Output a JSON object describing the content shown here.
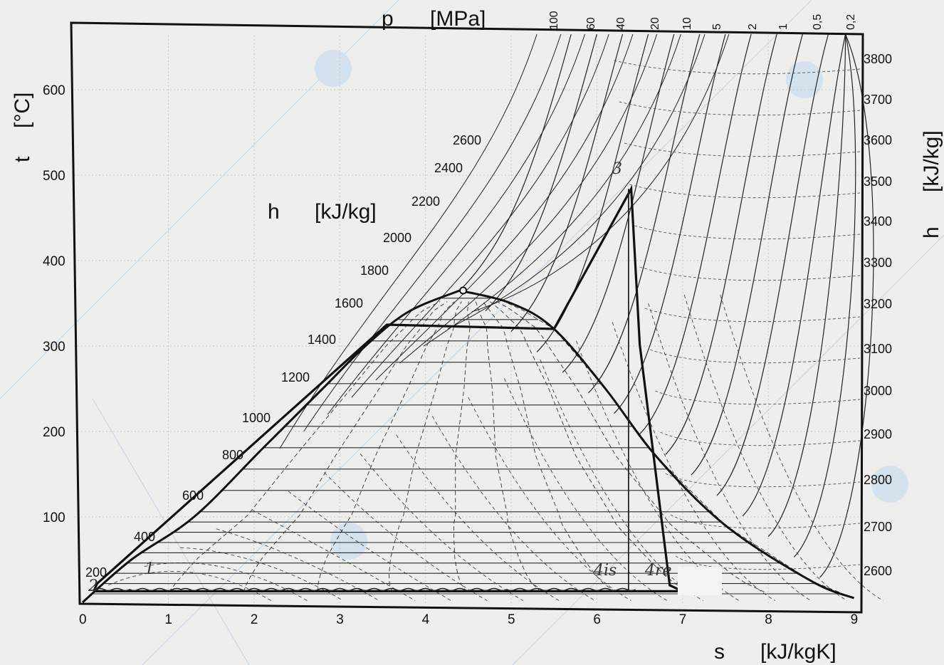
{
  "chart_data": {
    "type": "line",
    "title": "",
    "xlabel": "s",
    "xunit": "[kJ/kgK]",
    "ylabel": "t",
    "yunit": "[°C]",
    "xlim": [
      0,
      9
    ],
    "ylim": [
      0,
      670
    ],
    "x_ticks": [
      0,
      1,
      2,
      3,
      4,
      5,
      6,
      7,
      8,
      9
    ],
    "y_ticks": [
      100,
      200,
      300,
      400,
      500,
      600
    ],
    "pressure_label": "p",
    "pressure_unit": "[MPa]",
    "pressure_ticks": [
      "100",
      "60",
      "40",
      "20",
      "10",
      "5",
      "2",
      "1",
      "0,5",
      "0,2"
    ],
    "enthalpy_label_inside": "h",
    "enthalpy_unit_inside": "[kJ/kg]",
    "enthalpy_labels_inside": [
      "200",
      "400",
      "600",
      "800",
      "1000",
      "1200",
      "1400",
      "1600",
      "1800",
      "2000",
      "2200",
      "2400",
      "2600"
    ],
    "enthalpy_label_right": "h",
    "enthalpy_unit_right": "[kJ/kg]",
    "enthalpy_ticks_right": [
      "2600",
      "2700",
      "2800",
      "2900",
      "3000",
      "3100",
      "3200",
      "3300",
      "3400",
      "3500",
      "3600",
      "3700",
      "3800"
    ],
    "saturation_dome": {
      "liquid": [
        [
          0,
          0
        ],
        [
          0.57,
          50
        ],
        [
          1.3,
          100
        ],
        [
          2.1,
          180
        ],
        [
          2.8,
          250
        ],
        [
          3.3,
          300
        ],
        [
          3.8,
          340
        ],
        [
          4.4,
          365
        ]
      ],
      "vapor": [
        [
          4.4,
          365
        ],
        [
          5.0,
          350
        ],
        [
          5.5,
          320
        ],
        [
          6.1,
          250
        ],
        [
          6.7,
          170
        ],
        [
          7.5,
          90
        ],
        [
          8.5,
          25
        ],
        [
          9.0,
          5
        ]
      ]
    },
    "critical_point": [
      4.44,
      365
    ],
    "cycle": [
      [
        0.13,
        13
      ],
      [
        0.17,
        22
      ],
      [
        3.55,
        325
      ],
      [
        5.5,
        320
      ],
      [
        6.4,
        484
      ],
      [
        6.5,
        302
      ],
      [
        6.85,
        20
      ],
      [
        7.0,
        13
      ],
      [
        0.13,
        13
      ]
    ],
    "cycle_isentrope": [
      [
        6.37,
        484
      ],
      [
        6.37,
        13
      ]
    ],
    "cycle_point_labels": [
      "3",
      "1",
      "2",
      "4is",
      "4re"
    ]
  }
}
